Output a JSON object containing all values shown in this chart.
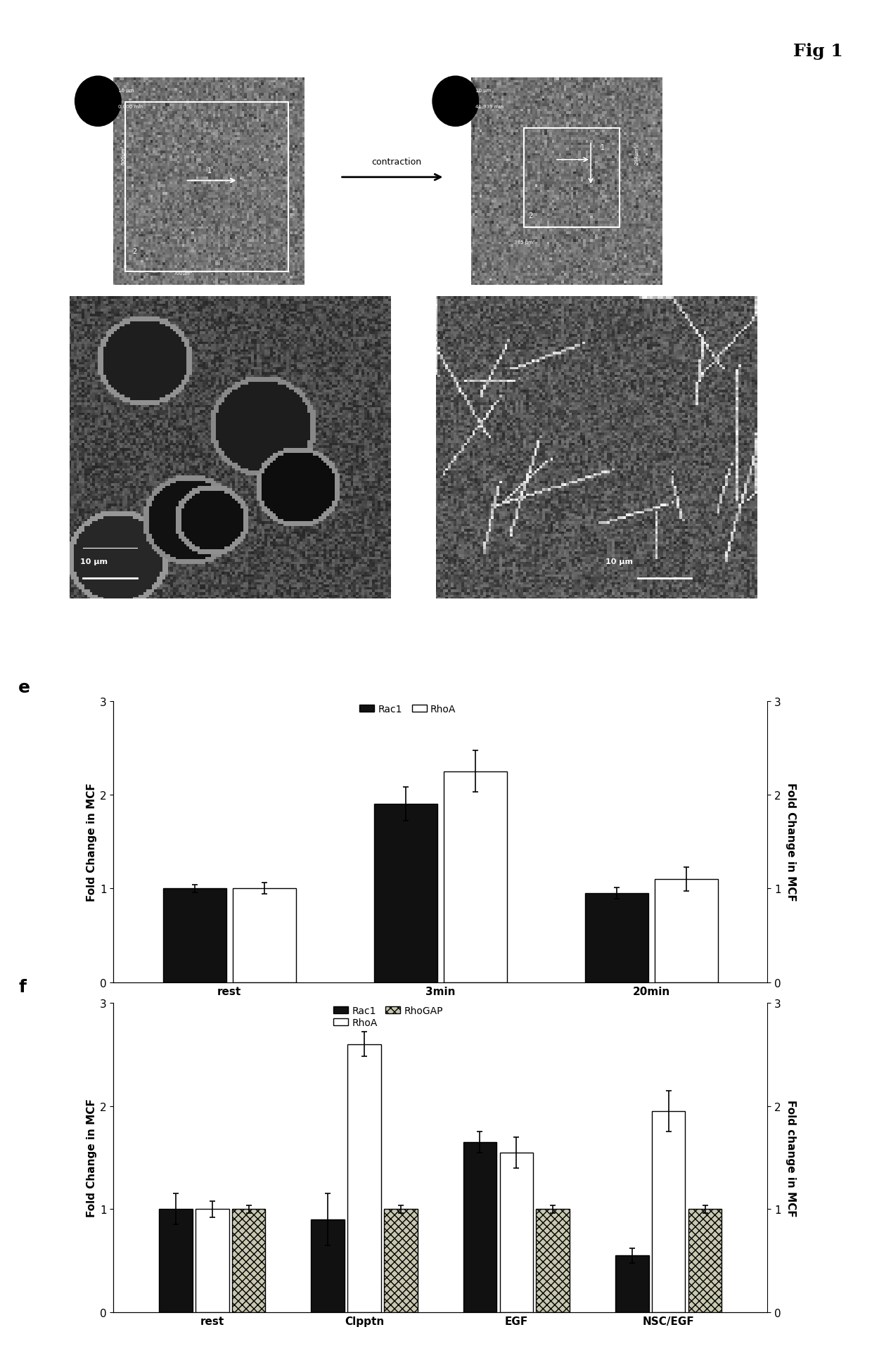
{
  "fig_label": "Fig 1",
  "panel_e": {
    "label": "e",
    "groups": [
      "rest",
      "3min",
      "20min"
    ],
    "rac1_values": [
      1.0,
      1.9,
      0.95
    ],
    "rhoa_values": [
      1.0,
      2.25,
      1.1
    ],
    "rac1_errors": [
      0.04,
      0.18,
      0.06
    ],
    "rhoa_errors": [
      0.06,
      0.22,
      0.13
    ],
    "ylabel_left": "Fold Change in MCF",
    "ylabel_right": "Fold Change in MCF",
    "ylim": [
      0,
      3
    ],
    "yticks": [
      0,
      1,
      2,
      3
    ],
    "rac1_color": "#111111",
    "rhoa_color": "#ffffff",
    "bar_edge_color": "#000000",
    "legend_rac1": "Rac1",
    "legend_rhoa": "RhoA"
  },
  "panel_f": {
    "label": "f",
    "groups": [
      "rest",
      "Clpptn",
      "EGF",
      "NSC/EGF"
    ],
    "rac1_values": [
      1.0,
      0.9,
      1.65,
      0.55
    ],
    "rhoa_values": [
      1.0,
      2.6,
      1.55,
      1.95
    ],
    "rhogap_values": [
      1.0,
      1.0,
      1.0,
      1.0
    ],
    "rac1_errors": [
      0.15,
      0.25,
      0.1,
      0.07
    ],
    "rhoa_errors": [
      0.08,
      0.12,
      0.15,
      0.2
    ],
    "rhogap_errors": [
      0.04,
      0.04,
      0.04,
      0.04
    ],
    "ylabel_left": "Fold Change in MCF",
    "ylabel_right": "Fold change in MCF",
    "ylim": [
      0,
      3
    ],
    "yticks": [
      0,
      1,
      2,
      3
    ],
    "rac1_color": "#111111",
    "rhoa_color": "#ffffff",
    "rhogap_color": "#c8c8b0",
    "bar_edge_color": "#000000",
    "legend_rac1": "Rac1",
    "legend_rhoa": "RhoA",
    "legend_rhogap": "RhoGAP"
  },
  "background_color": "#ffffff",
  "font_size_labels": 11,
  "font_size_ticks": 11,
  "font_size_legend": 10,
  "font_size_panel_label": 18
}
